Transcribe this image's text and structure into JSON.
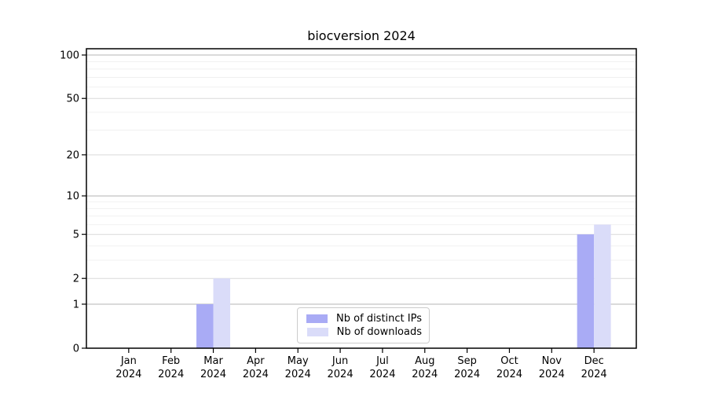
{
  "figure": {
    "title": "biocversion 2024",
    "background_color": "#ffffff"
  },
  "chart_data": {
    "type": "bar",
    "title": "biocversion 2024",
    "categories": [
      [
        "Jan",
        "2024"
      ],
      [
        "Feb",
        "2024"
      ],
      [
        "Mar",
        "2024"
      ],
      [
        "Apr",
        "2024"
      ],
      [
        "May",
        "2024"
      ],
      [
        "Jun",
        "2024"
      ],
      [
        "Jul",
        "2024"
      ],
      [
        "Aug",
        "2024"
      ],
      [
        "Sep",
        "2024"
      ],
      [
        "Oct",
        "2024"
      ],
      [
        "Nov",
        "2024"
      ],
      [
        "Dec",
        "2024"
      ]
    ],
    "series": [
      {
        "name": "Nb of distinct IPs",
        "color": "#a9abf5",
        "values": [
          0,
          0,
          1,
          0,
          0,
          0,
          0,
          0,
          0,
          0,
          0,
          5
        ]
      },
      {
        "name": "Nb of downloads",
        "color": "#dadcf9",
        "values": [
          0,
          0,
          2,
          0,
          0,
          0,
          0,
          0,
          0,
          0,
          0,
          6
        ]
      }
    ],
    "xlabel": "",
    "ylabel": "",
    "yscale": "log1p",
    "yticks": [
      0,
      1,
      2,
      5,
      10,
      20,
      50,
      100
    ],
    "ylim": [
      0,
      112
    ],
    "grid": "on",
    "grid_major_decade_color": "#b4b4b4",
    "grid_major_color": "#dadada",
    "grid_minor_color": "#f0f0f0",
    "legend_position": "lower center",
    "legend_entries": [
      "Nb of distinct IPs",
      "Nb of downloads"
    ]
  }
}
